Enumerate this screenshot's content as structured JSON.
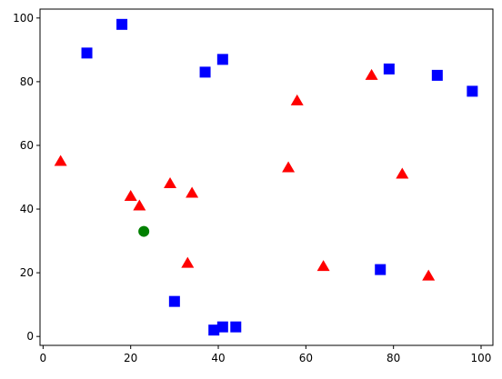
{
  "chart_data": {
    "type": "scatter",
    "series": [
      {
        "color": "#ff0000",
        "marker": "triangle",
        "x": [
          4,
          20,
          22,
          29,
          34,
          33,
          56,
          58,
          75,
          82,
          64,
          88
        ],
        "values": [
          55,
          44,
          41,
          48,
          45,
          23,
          53,
          74,
          82,
          51,
          22,
          19
        ]
      },
      {
        "color": "#0000ff",
        "marker": "square",
        "x": [
          10,
          18,
          37,
          41,
          30,
          39,
          41,
          44,
          77,
          79,
          90,
          98
        ],
        "values": [
          89,
          98,
          83,
          87,
          11,
          2,
          3,
          3,
          21,
          84,
          82,
          77
        ]
      },
      {
        "color": "#008000",
        "marker": "circle",
        "x": [
          23
        ],
        "values": [
          33
        ]
      }
    ],
    "xlim": [
      -0.7,
      102.7
    ],
    "ylim": [
      -2.8,
      102.8
    ],
    "xticks": [
      0,
      20,
      40,
      60,
      80,
      100
    ],
    "yticks": [
      0,
      20,
      40,
      60,
      80,
      100
    ],
    "grid": false
  }
}
